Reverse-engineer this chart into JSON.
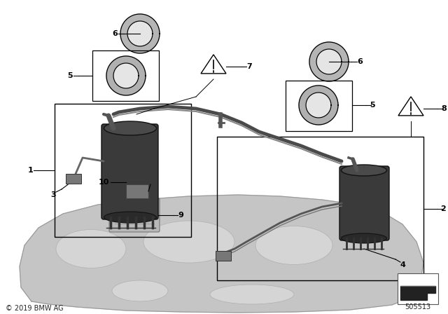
{
  "bg_color": "#ffffff",
  "copyright": "© 2019 BMW AG",
  "part_number": "505513",
  "lc": "#000000",
  "gray_dark": "#444444",
  "gray_mid": "#888888",
  "gray_light": "#cccccc",
  "gray_tank": "#c8c8c8",
  "gray_ring_outer": "#aaaaaa",
  "gray_ring_inner": "#e0e0e0",
  "pump_body": "#4a4a4a",
  "pump_edge": "#222222"
}
